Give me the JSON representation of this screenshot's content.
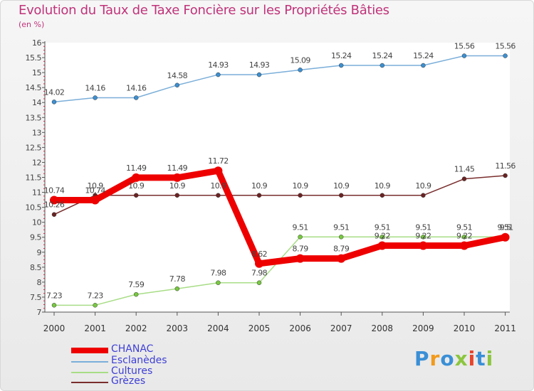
{
  "chart_data": {
    "type": "line",
    "title": "Evolution du Taux de Taxe Foncière sur les Propriétés Bâties",
    "unit_label": "(en %)",
    "xlabel": "",
    "ylabel": "(en %)",
    "ylim": [
      7,
      16
    ],
    "y_ticks": [
      7,
      7.5,
      8,
      8.5,
      9,
      9.5,
      10,
      10.5,
      11,
      11.5,
      12,
      12.5,
      13,
      13.5,
      14,
      14.5,
      15,
      15.5,
      16
    ],
    "grid": false,
    "legend_position": "bottom-left",
    "categories": [
      "2000",
      "2001",
      "2002",
      "2003",
      "2004",
      "2005",
      "2006",
      "2007",
      "2008",
      "2009",
      "2010",
      "2011"
    ],
    "series": [
      {
        "name": "CHANAC",
        "color": "#ee0000",
        "thick": true,
        "values": [
          10.74,
          10.74,
          11.49,
          11.49,
          11.72,
          8.62,
          8.79,
          8.79,
          9.22,
          9.22,
          9.22,
          9.5
        ],
        "labels": [
          "10.74",
          "10.74",
          "11.49",
          "11.49",
          "11.72",
          "8.62",
          "8.79",
          "8.79",
          "9.22",
          "9.22",
          "9.22",
          "9.5"
        ]
      },
      {
        "name": "Esclanèdes",
        "color": "#7aaed9",
        "marker": "#3d8fd0",
        "values": [
          14.02,
          14.16,
          14.16,
          14.58,
          14.93,
          14.93,
          15.09,
          15.24,
          15.24,
          15.24,
          15.56,
          15.56
        ],
        "labels": [
          "14.02",
          "14.16",
          "14.16",
          "14.58",
          "14.93",
          "14.93",
          "15.09",
          "15.24",
          "15.24",
          "15.24",
          "15.56",
          "15.56"
        ]
      },
      {
        "name": "Cultures",
        "color": "#a8dd86",
        "marker": "#78c840",
        "values": [
          7.23,
          7.23,
          7.59,
          7.78,
          7.98,
          7.98,
          9.51,
          9.51,
          9.51,
          9.51,
          9.51,
          9.51
        ],
        "labels": [
          "7.23",
          "7.23",
          "7.59",
          "7.78",
          "7.98",
          "7.98",
          "9.51",
          "9.51",
          "9.51",
          "9.51",
          "9.51",
          "9.51"
        ]
      },
      {
        "name": "Grèzes",
        "color": "#7a2e2e",
        "marker": "#6b2323",
        "values": [
          10.26,
          10.9,
          10.9,
          10.9,
          10.9,
          10.9,
          10.9,
          10.9,
          10.9,
          10.9,
          11.45,
          11.56
        ],
        "labels": [
          "10.26",
          "10.9",
          "10.9",
          "10.9",
          "10.9",
          "10.9",
          "10.9",
          "10.9",
          "10.9",
          "10.9",
          "11.45",
          "11.56"
        ]
      }
    ]
  },
  "legend": {
    "items": [
      {
        "label": "CHANAC",
        "color": "#ee0000"
      },
      {
        "label": "Esclanèdes",
        "color": "#7aaed9"
      },
      {
        "label": "Cultures",
        "color": "#a8dd86"
      },
      {
        "label": "Grèzes",
        "color": "#7a2e2e"
      }
    ]
  },
  "logo": {
    "text": "Proxiti",
    "colors": [
      "#3a8fd6",
      "#f29a1c",
      "#3a8fd6",
      "#8cc63f",
      "#e8442c",
      "#3a8fd6",
      "#8cc63f"
    ]
  }
}
